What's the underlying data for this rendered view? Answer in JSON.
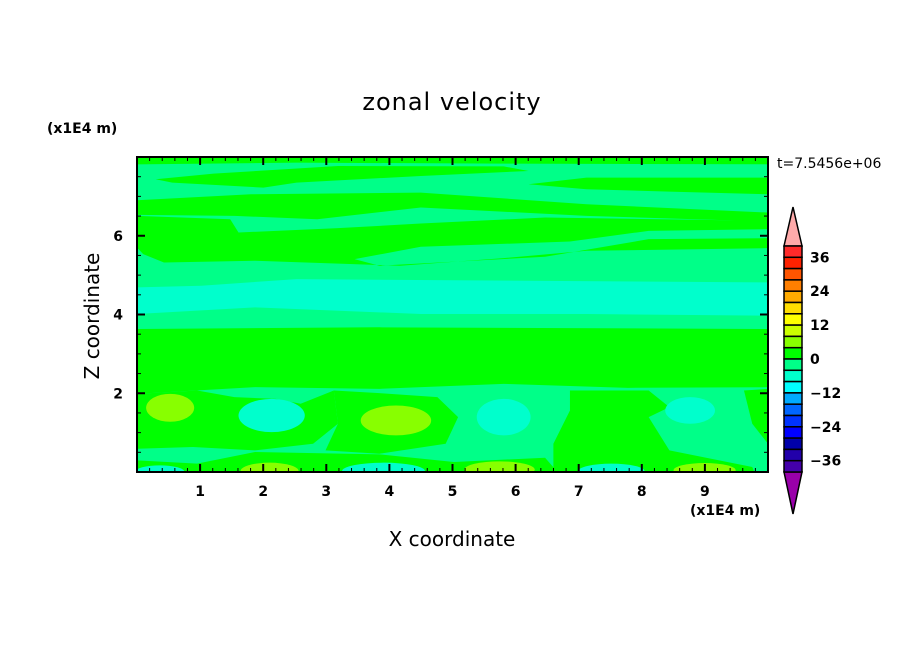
{
  "chart_data": {
    "type": "contour",
    "title": "zonal velocity",
    "xlabel": "X coordinate",
    "ylabel": "Z coordinate",
    "x_unit": "(x1E4 m)",
    "y_unit": "(x1E4 m)",
    "annotation": "t=7.5456e+06",
    "xlim": [
      0,
      10
    ],
    "ylim": [
      0,
      8
    ],
    "x_ticks": [
      "1",
      "2",
      "3",
      "4",
      "5",
      "6",
      "7",
      "8",
      "9"
    ],
    "y_ticks": [
      "2",
      "4",
      "6"
    ],
    "colorbar": {
      "levels": [
        40,
        36,
        32,
        28,
        24,
        20,
        16,
        12,
        8,
        4,
        0,
        -4,
        -8,
        -12,
        -16,
        -20,
        -24,
        -28,
        -32,
        -36,
        -40
      ],
      "tick_labels": [
        "36",
        "24",
        "12",
        "0",
        "−12",
        "−24",
        "−36"
      ],
      "colors": [
        "#ff2a2a",
        "#ff2200",
        "#ff5500",
        "#ff7f00",
        "#ffaa00",
        "#ffdd00",
        "#ffff00",
        "#ccff00",
        "#88ff00",
        "#00ff00",
        "#00ff88",
        "#00ffcc",
        "#00ffff",
        "#00aaff",
        "#0066ff",
        "#0033ff",
        "#0000ff",
        "#0000aa",
        "#2200aa",
        "#4400aa"
      ],
      "over_color": "#ffaaaa",
      "under_color": "#9900aa"
    },
    "field_colors": {
      "minus4_to_0": "#00ff88",
      "0_to_4": "#00ff00",
      "minus8_to_minus4": "#00ffcc",
      "4_to_8": "#88ff00"
    }
  }
}
